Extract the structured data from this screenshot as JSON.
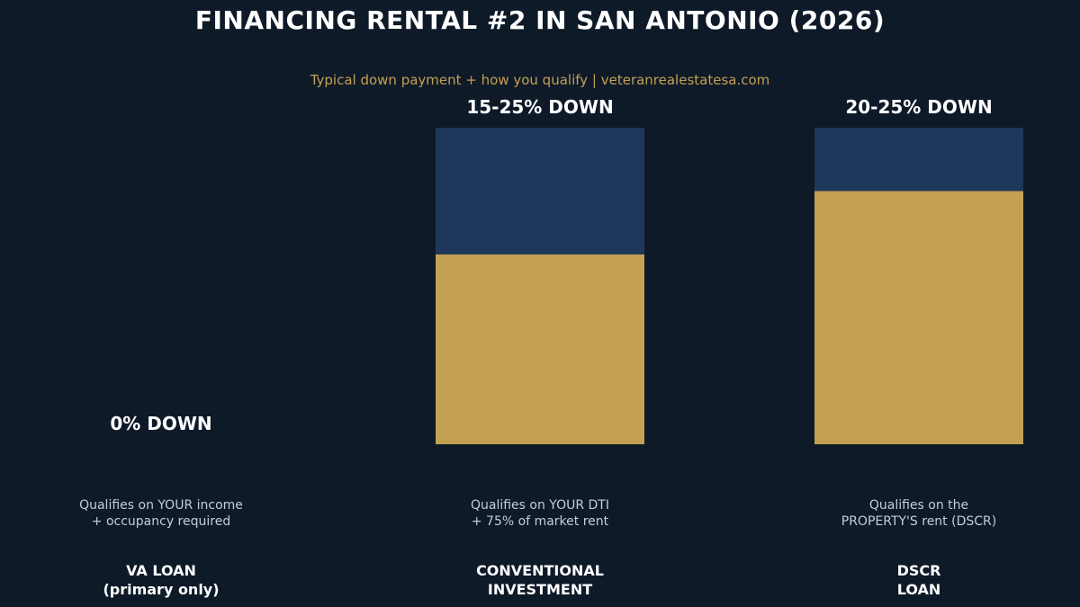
{
  "title": "FINANCING RENTAL #2 IN SAN ANTONIO (2026)",
  "subtitle": "Typical down payment + how you qualify  |  veteranrealestatesa.com",
  "colors": {
    "background": "#0e1a28",
    "gold": "#c4a052",
    "navy": "#1c375a",
    "white": "#ffffff",
    "muted_text": "#c4cdd8"
  },
  "chart_data": {
    "type": "bar",
    "categories": [
      "VA LOAN (primary only)",
      "CONVENTIONAL INVESTMENT",
      "DSCR LOAN"
    ],
    "ylim": [
      0,
      25
    ],
    "series": [
      {
        "color": "#c4a052",
        "values": [
          0,
          15,
          20
        ]
      },
      {
        "color": "#1c375a",
        "values": [
          0,
          10,
          5
        ]
      }
    ],
    "data_labels": [
      "0% DOWN",
      "15-25% DOWN",
      "20-25% DOWN"
    ],
    "qualification_notes": [
      [
        "Qualifies on YOUR income",
        "+ occupancy required"
      ],
      [
        "Qualifies on YOUR DTI",
        "+ 75% of market rent"
      ],
      [
        "Qualifies on the",
        "PROPERTY'S rent (DSCR)"
      ]
    ],
    "category_labels": [
      [
        "VA LOAN",
        "(primary only)"
      ],
      [
        "CONVENTIONAL",
        "INVESTMENT"
      ],
      [
        "DSCR",
        "LOAN"
      ]
    ],
    "grid": false,
    "legend": "none"
  }
}
